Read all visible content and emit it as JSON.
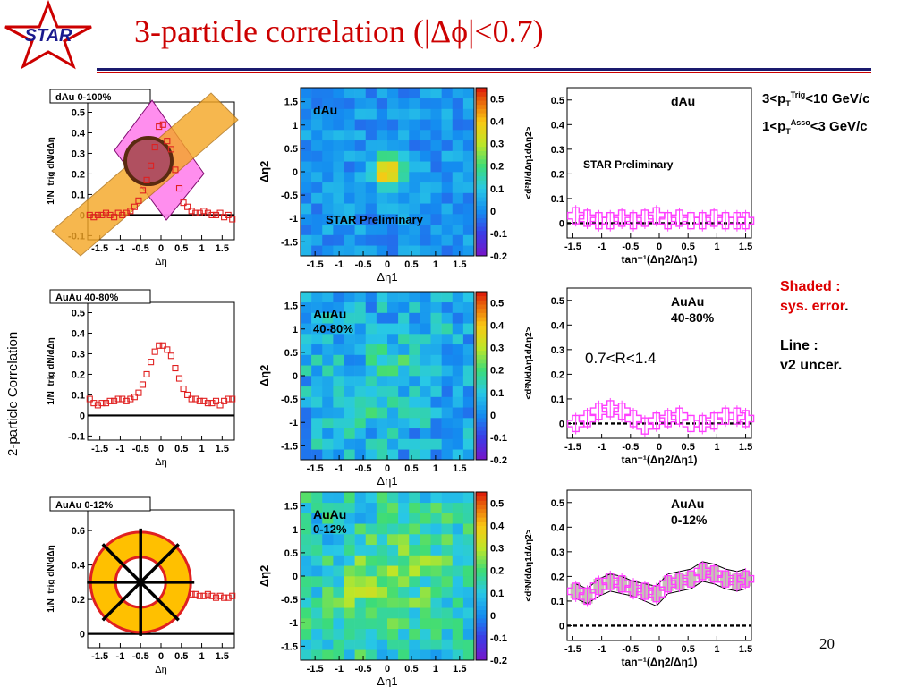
{
  "title": "3-particle correlation (|Δϕ|<0.7)",
  "logo_text": "STAR",
  "page_number": "20",
  "side_label": "2-particle Correlation",
  "pt_cuts": {
    "line1_pre": "3<p",
    "line1_sub": "T",
    "line1_sup": "Trig",
    "line1_post": "<10 GeV/c",
    "line2_pre": "1<p",
    "line2_sub": "T",
    "line2_sup": "Asso",
    "line2_post": "<3  GeV/c"
  },
  "notes": {
    "shaded": "Shaded :",
    "shaded_desc": "sys. error",
    "period": ".",
    "line": "Line  :",
    "line_desc": "v2 uncer."
  },
  "colors": {
    "title": "#cc0000",
    "marker_2p": "#e02020",
    "marker_3p": "#ff40ff",
    "band": "#f5a623",
    "diamond": "#ff88ee",
    "circle_fill": "#b05060",
    "ring": "#ffc000",
    "ring_edge": "#e02020"
  },
  "chart_data": [
    {
      "type": "scatter",
      "panel": "dAu",
      "legend": "dAu 0-100%",
      "xlabel": "Δη",
      "ylabel": "1/N_trig dN/dΔη",
      "xlim": [
        -1.8,
        1.8
      ],
      "ylim": [
        -0.12,
        0.55
      ],
      "xticks": [
        -1.5,
        -1,
        -0.5,
        0,
        0.5,
        1,
        1.5
      ],
      "yticks": [
        -0.1,
        0,
        0.1,
        0.2,
        0.3,
        0.4,
        0.5
      ],
      "x": [
        -1.75,
        -1.65,
        -1.55,
        -1.45,
        -1.35,
        -1.25,
        -1.15,
        -1.05,
        -0.95,
        -0.85,
        -0.75,
        -0.65,
        -0.55,
        -0.45,
        -0.35,
        -0.25,
        -0.15,
        -0.05,
        0.05,
        0.15,
        0.25,
        0.35,
        0.45,
        0.55,
        0.65,
        0.75,
        0.85,
        0.95,
        1.05,
        1.15,
        1.25,
        1.35,
        1.45,
        1.55,
        1.65,
        1.75
      ],
      "y": [
        0.0,
        -0.01,
        0.0,
        0.0,
        0.01,
        0.0,
        -0.01,
        0.01,
        0.0,
        0.01,
        0.02,
        0.04,
        0.07,
        0.12,
        0.17,
        0.24,
        0.33,
        0.43,
        0.44,
        0.36,
        0.32,
        0.22,
        0.13,
        0.06,
        0.04,
        0.02,
        0.01,
        0.01,
        0.02,
        0.01,
        0.0,
        0.0,
        0.01,
        -0.01,
        0.0,
        -0.02
      ],
      "overlay": "diamond-band-circle"
    },
    {
      "type": "scatter",
      "panel": "AuAu 40-80",
      "legend": "AuAu 40-80%",
      "xlabel": "Δη",
      "ylabel": "1/N_trig dN/dΔη",
      "xlim": [
        -1.8,
        1.8
      ],
      "ylim": [
        -0.12,
        0.55
      ],
      "xticks": [
        -1.5,
        -1,
        -0.5,
        0,
        0.5,
        1,
        1.5
      ],
      "yticks": [
        -0.1,
        0,
        0.1,
        0.2,
        0.3,
        0.4,
        0.5
      ],
      "x": [
        -1.75,
        -1.65,
        -1.55,
        -1.45,
        -1.35,
        -1.25,
        -1.15,
        -1.05,
        -0.95,
        -0.85,
        -0.75,
        -0.65,
        -0.55,
        -0.45,
        -0.35,
        -0.25,
        -0.15,
        -0.05,
        0.05,
        0.15,
        0.25,
        0.35,
        0.45,
        0.55,
        0.65,
        0.75,
        0.85,
        0.95,
        1.05,
        1.15,
        1.25,
        1.35,
        1.45,
        1.55,
        1.65,
        1.75
      ],
      "y": [
        0.08,
        0.06,
        0.05,
        0.06,
        0.06,
        0.07,
        0.07,
        0.08,
        0.08,
        0.07,
        0.08,
        0.09,
        0.11,
        0.15,
        0.2,
        0.26,
        0.31,
        0.34,
        0.34,
        0.32,
        0.29,
        0.23,
        0.18,
        0.13,
        0.1,
        0.08,
        0.08,
        0.07,
        0.07,
        0.06,
        0.06,
        0.07,
        0.05,
        0.07,
        0.08,
        0.08
      ]
    },
    {
      "type": "scatter",
      "panel": "AuAu 0-12",
      "legend": "AuAu 0-12%",
      "xlabel": "Δη",
      "ylabel": "1/N_trig dN/dΔη",
      "xlim": [
        -1.8,
        1.8
      ],
      "ylim": [
        -0.08,
        0.72
      ],
      "xticks": [
        -1.5,
        -1,
        -0.5,
        0,
        0.5,
        1,
        1.5
      ],
      "yticks": [
        0,
        0.2,
        0.4,
        0.6
      ],
      "x": [
        0.55,
        0.65,
        0.75,
        0.85,
        0.95,
        1.05,
        1.15,
        1.25,
        1.35,
        1.45,
        1.55,
        1.65,
        1.75
      ],
      "y": [
        0.26,
        0.24,
        0.23,
        0.23,
        0.22,
        0.22,
        0.23,
        0.22,
        0.21,
        0.22,
        0.21,
        0.21,
        0.22
      ],
      "overlay": "ring"
    },
    {
      "type": "heatmap",
      "panel": "dAu 2D",
      "label": "dAu",
      "preliminary": "STAR Preliminary",
      "xlabel": "Δη1",
      "ylabel": "Δη2",
      "xlim": [
        -1.8,
        1.8
      ],
      "ylim": [
        -1.8,
        1.8
      ],
      "xticks": [
        -1.5,
        -1,
        -0.5,
        0,
        0.5,
        1,
        1.5
      ],
      "yticks": [
        -1.5,
        -1,
        -0.5,
        0,
        0.5,
        1,
        1.5
      ],
      "zlim": [
        -0.2,
        0.55
      ],
      "zticks": [
        -0.2,
        -0.1,
        0,
        0.1,
        0.2,
        0.3,
        0.4,
        0.5
      ],
      "grid_size": 16,
      "peak": {
        "amplitude": 0.45,
        "width_along": 0.22,
        "width_across": 0.22
      },
      "background": 0.02,
      "noise": 0.06
    },
    {
      "type": "heatmap",
      "panel": "AuAu 40-80 2D",
      "label": "AuAu",
      "label2": "40-80%",
      "xlabel": "Δη1",
      "ylabel": "Δη2",
      "xlim": [
        -1.8,
        1.8
      ],
      "ylim": [
        -1.8,
        1.8
      ],
      "xticks": [
        -1.5,
        -1,
        -0.5,
        0,
        0.5,
        1,
        1.5
      ],
      "yticks": [
        -1.5,
        -1,
        -0.5,
        0,
        0.5,
        1,
        1.5
      ],
      "zlim": [
        -0.2,
        0.55
      ],
      "zticks": [
        -0.2,
        -0.1,
        0,
        0.1,
        0.2,
        0.3,
        0.4,
        0.5
      ],
      "grid_size": 16,
      "peak": {
        "amplitude": 0.1,
        "width_along": 0.9,
        "width_across": 0.4
      },
      "background": 0.06,
      "noise": 0.1
    },
    {
      "type": "heatmap",
      "panel": "AuAu 0-12 2D",
      "label": "AuAu",
      "label2": "0-12%",
      "xlabel": "Δη1",
      "ylabel": "Δη2",
      "xlim": [
        -1.8,
        1.8
      ],
      "ylim": [
        -1.8,
        1.8
      ],
      "xticks": [
        -1.5,
        -1,
        -0.5,
        0,
        0.5,
        1,
        1.5
      ],
      "yticks": [
        -1.5,
        -1,
        -0.5,
        0,
        0.5,
        1,
        1.5
      ],
      "zlim": [
        -0.2,
        0.55
      ],
      "zticks": [
        -0.2,
        -0.1,
        0,
        0.1,
        0.2,
        0.3,
        0.4,
        0.5
      ],
      "grid_size": 16,
      "peak": {
        "amplitude": 0.12,
        "width_along": 1.2,
        "width_across": 0.6
      },
      "background": 0.12,
      "noise": 0.1
    },
    {
      "type": "scatter",
      "panel": "dAu tan",
      "label": "dAu",
      "preliminary": "STAR Preliminary",
      "xlabel": "tan⁻¹(Δη2/Δη1)",
      "ylabel": "<d²N/dΔη1dΔη2>",
      "xlim": [
        -1.6,
        1.6
      ],
      "ylim": [
        -0.06,
        0.55
      ],
      "xticks": [
        -1.5,
        -1,
        -0.5,
        0,
        0.5,
        1,
        1.5
      ],
      "yticks": [
        0,
        0.1,
        0.2,
        0.3,
        0.4,
        0.5
      ],
      "x": [
        -1.45,
        -1.25,
        -1.05,
        -0.85,
        -0.65,
        -0.45,
        -0.25,
        -0.05,
        0.15,
        0.35,
        0.55,
        0.75,
        0.95,
        1.15,
        1.35,
        1.5
      ],
      "y": [
        0.03,
        0.02,
        0.01,
        0.01,
        0.02,
        0.01,
        0.02,
        0.03,
        0.01,
        0.02,
        0.01,
        0.01,
        0.02,
        0.01,
        0.01,
        0.01
      ],
      "reference_line": 0
    },
    {
      "type": "scatter",
      "panel": "AuAu 40-80 tan",
      "label": "AuAu",
      "label2": "40-80%",
      "annotation": "0.7<R<1.4",
      "xlabel": "tan⁻¹(Δη2/Δη1)",
      "ylabel": "<d²N/dΔη1dΔη2>",
      "xlim": [
        -1.6,
        1.6
      ],
      "ylim": [
        -0.06,
        0.55
      ],
      "xticks": [
        -1.5,
        -1,
        -0.5,
        0,
        0.5,
        1,
        1.5
      ],
      "yticks": [
        0,
        0.1,
        0.2,
        0.3,
        0.4,
        0.5
      ],
      "x": [
        -1.45,
        -1.25,
        -1.05,
        -0.85,
        -0.65,
        -0.45,
        -0.25,
        -0.05,
        0.15,
        0.35,
        0.55,
        0.75,
        0.95,
        1.15,
        1.35,
        1.5
      ],
      "y": [
        0.0,
        0.02,
        0.05,
        0.06,
        0.05,
        0.02,
        -0.01,
        0.01,
        0.02,
        0.03,
        0.0,
        0.0,
        0.01,
        0.03,
        0.03,
        0.02
      ],
      "reference_line": 0
    },
    {
      "type": "scatter",
      "panel": "AuAu 0-12 tan",
      "label": "AuAu",
      "label2": "0-12%",
      "xlabel": "tan⁻¹(Δη2/Δη1)",
      "ylabel": "<d²N/dΔη1dΔη2>",
      "xlim": [
        -1.6,
        1.6
      ],
      "ylim": [
        -0.06,
        0.55
      ],
      "xticks": [
        -1.5,
        -1,
        -0.5,
        0,
        0.5,
        1,
        1.5
      ],
      "yticks": [
        0,
        0.1,
        0.2,
        0.3,
        0.4,
        0.5
      ],
      "x": [
        -1.45,
        -1.25,
        -1.05,
        -0.85,
        -0.65,
        -0.45,
        -0.25,
        -0.05,
        0.15,
        0.35,
        0.55,
        0.75,
        0.95,
        1.15,
        1.35,
        1.5
      ],
      "y": [
        0.14,
        0.12,
        0.16,
        0.18,
        0.17,
        0.15,
        0.14,
        0.13,
        0.17,
        0.18,
        0.19,
        0.22,
        0.21,
        0.19,
        0.18,
        0.19
      ],
      "sys_error": [
        0.03,
        0.03,
        0.03,
        0.03,
        0.03,
        0.03,
        0.03,
        0.03,
        0.03,
        0.03,
        0.03,
        0.03,
        0.03,
        0.03,
        0.03,
        0.03
      ],
      "v2_upper": [
        0.17,
        0.15,
        0.19,
        0.21,
        0.2,
        0.18,
        0.17,
        0.16,
        0.21,
        0.22,
        0.23,
        0.26,
        0.25,
        0.23,
        0.22,
        0.23
      ],
      "v2_lower": [
        0.11,
        0.09,
        0.12,
        0.14,
        0.13,
        0.12,
        0.1,
        0.08,
        0.13,
        0.14,
        0.15,
        0.18,
        0.17,
        0.15,
        0.14,
        0.15
      ],
      "reference_line": 0
    }
  ]
}
